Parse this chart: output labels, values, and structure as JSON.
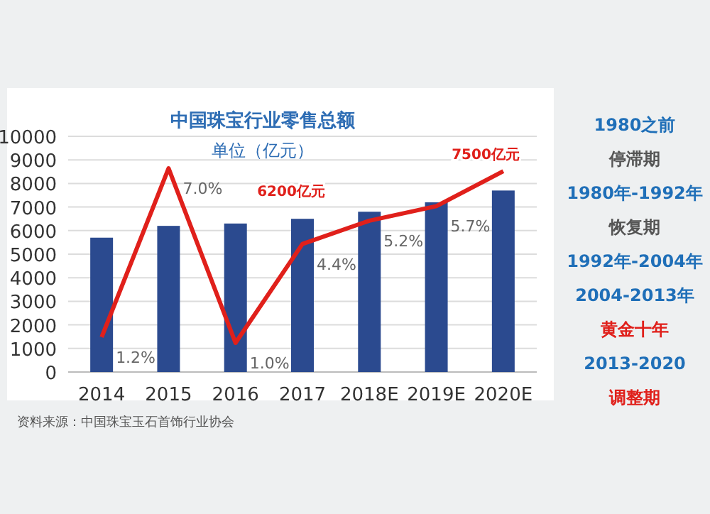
{
  "chart_data": {
    "type": "bar",
    "title": "中国珠宝行业零售总额",
    "subtitle": "单位（亿元）",
    "categories": [
      "2014",
      "2015",
      "2016",
      "2017",
      "2018E",
      "2019E",
      "2020E"
    ],
    "series": [
      {
        "color": "#2b4a8f",
        "values": [
          5700,
          6200,
          6300,
          6500,
          6800,
          7200,
          7700
        ]
      },
      {
        "type": "line",
        "axis": "y2",
        "color": "#e0201b",
        "values": [
          1.2,
          7.0,
          1.0,
          4.4,
          5.2,
          5.7,
          6.9
        ],
        "value_labels": [
          "1.2%",
          "7.0%",
          "1.0%",
          "4.4%",
          "5.2%",
          "5.7%",
          null
        ]
      }
    ],
    "ylim": [
      0,
      10000
    ],
    "yticks": [
      0,
      1000,
      2000,
      3000,
      4000,
      5000,
      6000,
      7000,
      8000,
      9000,
      10000
    ],
    "y2lim": [
      0,
      8.1
    ],
    "tick_labels": "xy",
    "grid": "y",
    "marker": "none",
    "line_style": "solid",
    "annotations": [
      "6200亿元",
      "7500亿元",
      "资料来源：中国珠宝玉石首饰行业协会",
      "1980之前",
      "停滞期",
      "1980年-1992年",
      "恢复期",
      "1992年-2004年",
      "2004-2013年",
      "黄金十年",
      "2013-2020",
      "调整期"
    ]
  }
}
